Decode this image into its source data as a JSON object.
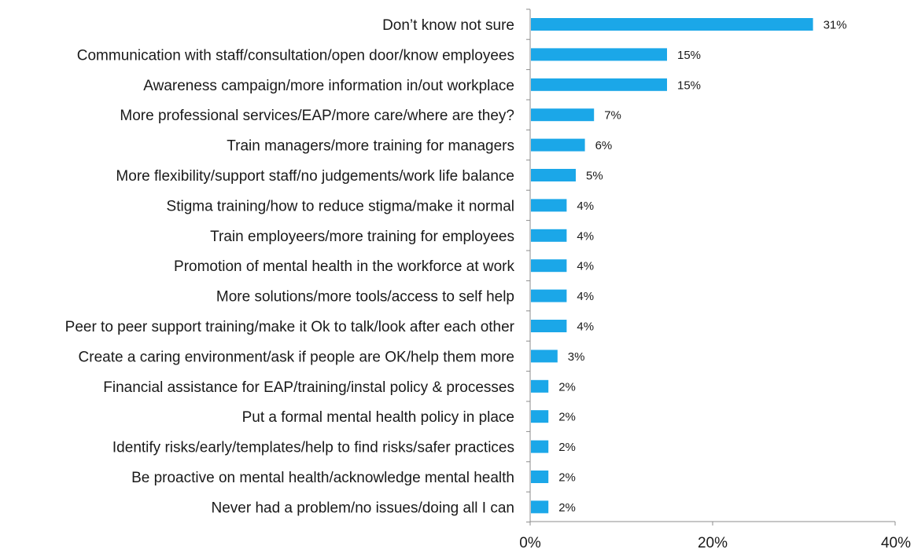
{
  "chart_data": {
    "type": "bar",
    "orientation": "horizontal",
    "categories": [
      "Don’t know not sure",
      "Communication with staff/consultation/open door/know employees",
      "Awareness campaign/more information in/out workplace",
      "More professional services/EAP/more care/where are they?",
      "Train managers/more training for managers",
      "More flexibility/support staff/no judgements/work life balance",
      "Stigma training/how to reduce stigma/make it normal",
      "Train employeers/more training for employees",
      "Promotion of mental health in the workforce at work",
      "More solutions/more tools/access to self help",
      "Peer to peer support training/make it Ok to talk/look after each other",
      "Create a caring environment/ask if people are OK/help them more",
      "Financial assistance for EAP/training/instal policy & processes",
      "Put a formal mental health policy in place",
      "Identify risks/early/templates/help to find risks/safer practices",
      "Be proactive on mental health/acknowledge mental health",
      "Never had a problem/no issues/doing all I can"
    ],
    "values": [
      31,
      15,
      15,
      7,
      6,
      5,
      4,
      4,
      4,
      4,
      4,
      3,
      2,
      2,
      2,
      2,
      2
    ],
    "value_labels": [
      "31%",
      "15%",
      "15%",
      "7%",
      "6%",
      "5%",
      "4%",
      "4%",
      "4%",
      "4%",
      "4%",
      "3%",
      "2%",
      "2%",
      "2%",
      "2%",
      "2%"
    ],
    "xlim": [
      0,
      40
    ],
    "x_ticks": [
      0,
      20,
      40
    ],
    "x_tick_labels": [
      "0%",
      "20%",
      "40%"
    ],
    "title": "",
    "xlabel": "",
    "ylabel": "",
    "grid": false,
    "legend": "none",
    "bar_color": "#1ba7e8",
    "axis_color": "#8c8c8c",
    "text_color": "#1a1a1a"
  }
}
